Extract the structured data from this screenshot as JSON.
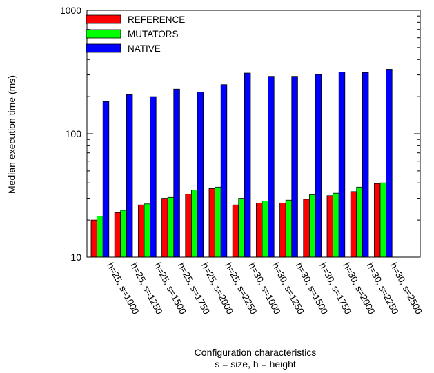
{
  "chart_data": {
    "type": "bar",
    "title": "",
    "xlabel": "Configuration characteristics",
    "xlabel2": "s = size, h = height",
    "ylabel": "Median execution time (ms)",
    "yscale": "log",
    "ylim": [
      10,
      1000
    ],
    "yticks": [
      "10",
      "100",
      "1000"
    ],
    "grid": false,
    "legend_position": "top-left",
    "categories": [
      "h=25, s=1000",
      "h=25, s=1250",
      "h=25, s=1500",
      "h=25, s=1750",
      "h=25, s=2000",
      "h=25, s=2250",
      "h=30, s=1000",
      "h=30, s=1250",
      "h=30, s=1500",
      "h=30, s=1750",
      "h=30, s=2000",
      "h=30, s=2250",
      "h=30, s=2500"
    ],
    "series": [
      {
        "name": "REFERENCE",
        "color": "#ff0000",
        "values": [
          20,
          23,
          26.5,
          30,
          32.5,
          36,
          26.5,
          27.5,
          27.5,
          29.5,
          31.5,
          34,
          39.5
        ]
      },
      {
        "name": "MUTATORS",
        "color": "#00ff00",
        "values": [
          21.5,
          24,
          27,
          30.5,
          35,
          37,
          30,
          28.5,
          29,
          32,
          33,
          37,
          40
        ]
      },
      {
        "name": "NATIVE",
        "color": "#0000ff",
        "values": [
          182,
          207,
          200,
          230,
          217,
          250,
          310,
          292,
          292,
          302,
          316,
          313,
          333
        ]
      }
    ]
  }
}
